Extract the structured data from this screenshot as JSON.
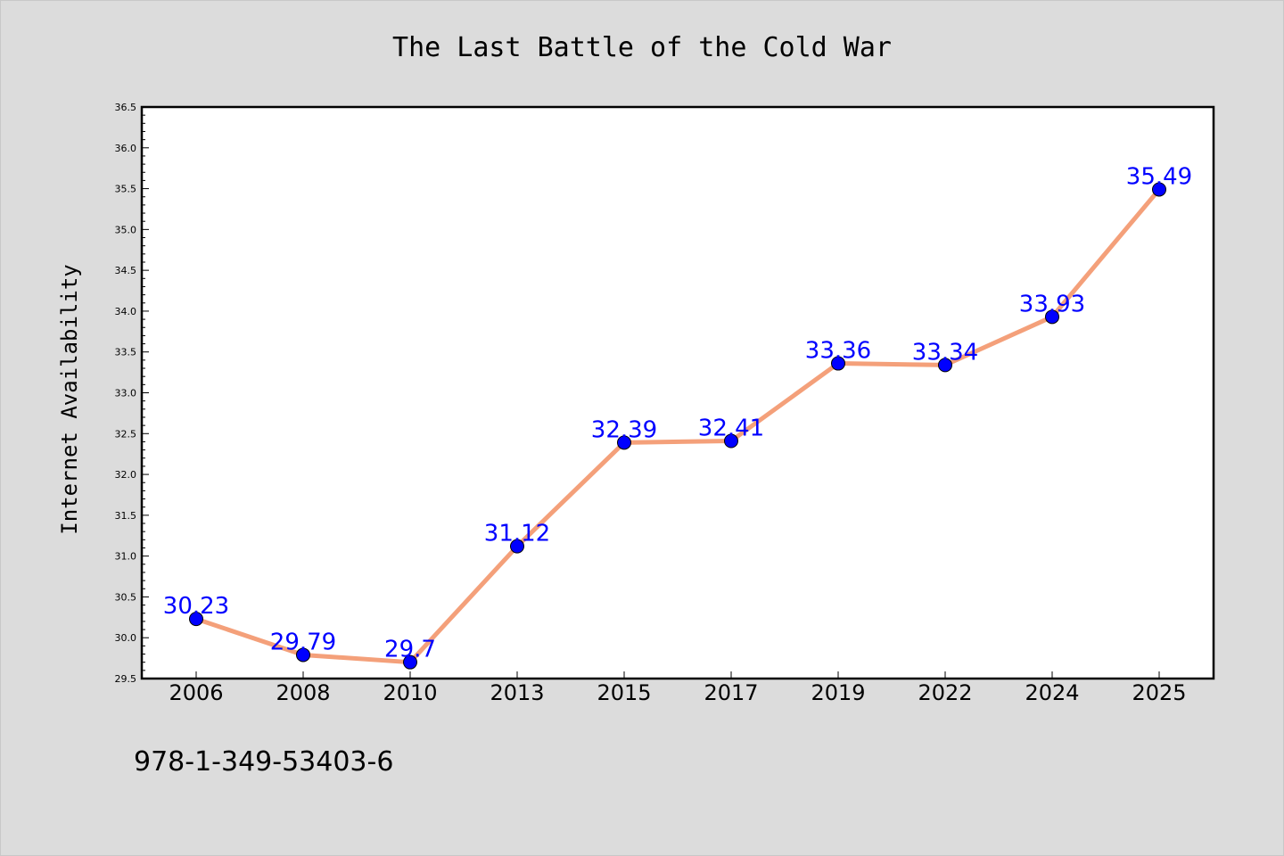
{
  "chart_data": {
    "type": "line",
    "title": "The Last Battle of the Cold War",
    "xlabel": "",
    "ylabel": "Internet Availability",
    "categories": [
      "2006",
      "2008",
      "2010",
      "2013",
      "2015",
      "2017",
      "2019",
      "2022",
      "2024",
      "2025"
    ],
    "series": [
      {
        "values": [
          30.23,
          29.79,
          29.7,
          31.12,
          32.39,
          32.41,
          33.36,
          33.34,
          33.93,
          35.49
        ],
        "data_labels": [
          "30.23",
          "29.79",
          "29.7",
          "31.12",
          "32.39",
          "32.41",
          "33.36",
          "33.34",
          "33.93",
          "35.49"
        ]
      }
    ],
    "ylim": [
      29.5,
      36.5
    ],
    "yticks": [
      "29.5",
      "30.0",
      "30.5",
      "31.0",
      "31.5",
      "32.0",
      "32.5",
      "33.0",
      "33.5",
      "34.0",
      "34.5",
      "35.0",
      "35.5",
      "36.0",
      "36.5"
    ],
    "grid": false,
    "colors": {
      "line": "#f4a07a",
      "marker": "#0000ff",
      "data_label": "#0000ff",
      "background": "#dcdcdc",
      "plot_background": "#ffffff"
    }
  },
  "footer_text": "978-1-349-53403-6"
}
